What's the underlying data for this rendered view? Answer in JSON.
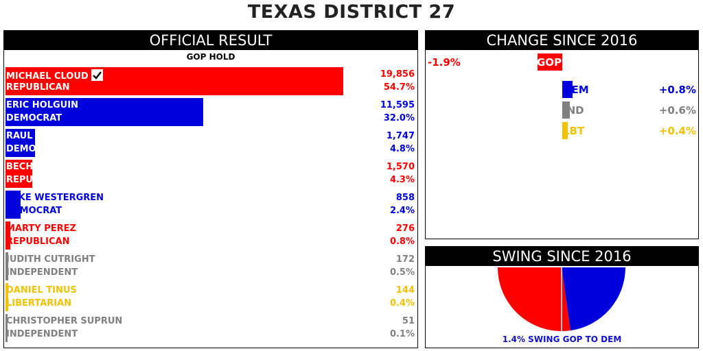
{
  "title": "TEXAS DISTRICT 27",
  "official": {
    "header": "OFFICIAL RESULT",
    "status": "GOP HOLD",
    "winner_check": "check-icon"
  },
  "change": {
    "header": "CHANGE SINCE 2016"
  },
  "swing": {
    "header": "SWING SINCE 2016",
    "caption": "1.4% SWING GOP TO DEM"
  },
  "colors": {
    "republican": "#ff0000",
    "democrat": "#0000dd",
    "independent": "#808080",
    "libertarian": "#f2c200"
  },
  "chart_data": [
    {
      "type": "bar",
      "name": "official-result",
      "categories": [
        "MICHAEL CLOUD",
        "ERIC HOLGUIN",
        "RAUL BARRERA",
        "BECH BRUUN",
        "MIKE WESTERGREN",
        "MARTY PEREZ",
        "JUDITH CUTRIGHT",
        "DANIEL TINUS",
        "CHRISTOPHER SUPRUN"
      ],
      "rows": [
        {
          "name": "MICHAEL CLOUD",
          "party": "REPUBLICAN",
          "votes": "19,856",
          "pct": "54.7%",
          "value": 54.7,
          "color": "#ff0000",
          "winner": true
        },
        {
          "name": "ERIC HOLGUIN",
          "party": "DEMOCRAT",
          "votes": "11,595",
          "pct": "32.0%",
          "value": 32.0,
          "color": "#0000dd"
        },
        {
          "name": "RAUL BARRERA",
          "party": "DEMOCRAT",
          "votes": "1,747",
          "pct": "4.8%",
          "value": 4.8,
          "color": "#0000dd"
        },
        {
          "name": "BECH BRUUN",
          "party": "REPUBLICAN",
          "votes": "1,570",
          "pct": "4.3%",
          "value": 4.3,
          "color": "#ff0000"
        },
        {
          "name": "MIKE WESTERGREN",
          "party": "DEMOCRAT",
          "votes": "858",
          "pct": "2.4%",
          "value": 2.4,
          "color": "#0000dd"
        },
        {
          "name": "MARTY PEREZ",
          "party": "REPUBLICAN",
          "votes": "276",
          "pct": "0.8%",
          "value": 0.8,
          "color": "#ff0000"
        },
        {
          "name": "JUDITH CUTRIGHT",
          "party": "INDEPENDENT",
          "votes": "172",
          "pct": "0.5%",
          "value": 0.5,
          "color": "#808080"
        },
        {
          "name": "DANIEL TINUS",
          "party": "LIBERTARIAN",
          "votes": "144",
          "pct": "0.4%",
          "value": 0.4,
          "color": "#f2c200"
        },
        {
          "name": "CHRISTOPHER SUPRUN",
          "party": "INDEPENDENT",
          "votes": "51",
          "pct": "0.1%",
          "value": 0.1,
          "color": "#808080"
        }
      ]
    },
    {
      "type": "bar",
      "name": "change-since-2016",
      "categories": [
        "GOP",
        "DEM",
        "IND",
        "LBT"
      ],
      "values": [
        -1.9,
        0.8,
        0.6,
        0.4
      ],
      "labels": [
        "-1.9%",
        "+0.8%",
        "+0.6%",
        "+0.4%"
      ],
      "colors": [
        "#ff0000",
        "#0000dd",
        "#808080",
        "#f2c200"
      ]
    },
    {
      "type": "pie",
      "name": "swing-since-2016",
      "categories": [
        "GOP",
        "DEM"
      ],
      "swing_pct": 1.4,
      "colors": [
        "#ff0000",
        "#0000dd"
      ]
    }
  ]
}
